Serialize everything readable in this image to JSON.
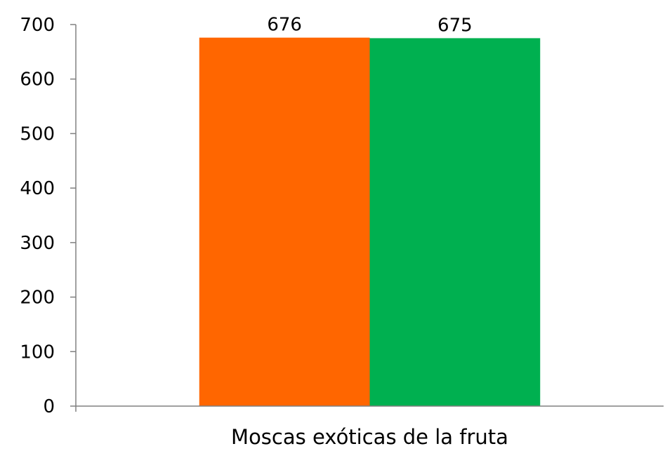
{
  "chart_data": {
    "type": "bar",
    "categories": [
      "Moscas exóticas de la fruta"
    ],
    "series": [
      {
        "values": [
          676
        ],
        "color": "#FF6600"
      },
      {
        "values": [
          675
        ],
        "color": "#00B050"
      }
    ],
    "data_labels": [
      "676",
      "675"
    ],
    "yticks": [
      0,
      100,
      200,
      300,
      400,
      500,
      600,
      700
    ],
    "ylim": [
      0,
      700
    ],
    "grid": false,
    "legend": "none"
  }
}
